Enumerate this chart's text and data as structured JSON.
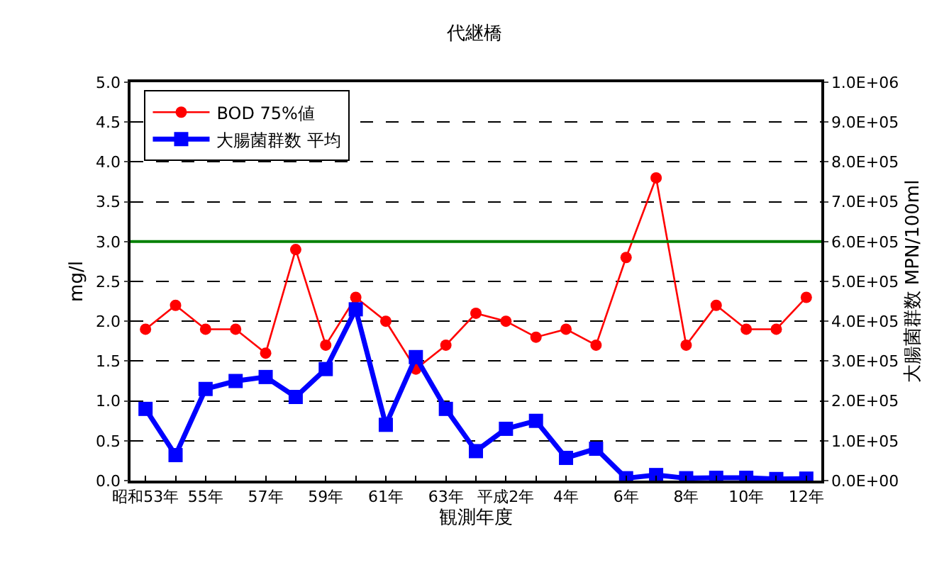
{
  "chart_data": {
    "type": "line",
    "title": "代継橋",
    "xlabel": "観測年度",
    "ylabel": "mg/l",
    "y2label": "大腸菌群数 MPN/100ml",
    "categories": [
      "昭和53年",
      null,
      "55年",
      null,
      "57年",
      null,
      "59年",
      null,
      "61年",
      null,
      "63年",
      null,
      "平成2年",
      null,
      "4年",
      null,
      "6年",
      null,
      "8年",
      null,
      "10年",
      null,
      "12年"
    ],
    "series": [
      {
        "name": "BOD 75%値",
        "color": "#ff0000",
        "marker": "circle",
        "values": [
          1.9,
          2.2,
          1.9,
          1.9,
          1.6,
          2.9,
          1.7,
          2.3,
          2.0,
          1.4,
          1.7,
          2.1,
          2.0,
          1.8,
          1.9,
          1.7,
          2.8,
          3.8,
          1.7,
          2.2,
          1.9,
          1.9,
          2.3
        ]
      },
      {
        "name": "大腸菌群数 平均",
        "color": "#0000ff",
        "marker": "square",
        "axis": "y2",
        "values": [
          180000,
          64000,
          230000,
          250000,
          260000,
          210000,
          280000,
          430000,
          140000,
          310000,
          180000,
          74000,
          130000,
          150000,
          57000,
          80000,
          6000,
          14000,
          6000,
          7000,
          7000,
          4000,
          5000
        ]
      }
    ],
    "ylim": [
      0,
      5
    ],
    "yticks": [
      {
        "value": 0,
        "label": "0.0"
      },
      {
        "value": 0.5,
        "label": "0.5"
      },
      {
        "value": 1,
        "label": "1.0"
      },
      {
        "value": 1.5,
        "label": "1.5"
      },
      {
        "value": 2,
        "label": "2.0"
      },
      {
        "value": 2.5,
        "label": "2.5"
      },
      {
        "value": 3,
        "label": "3.0"
      },
      {
        "value": 3.5,
        "label": "3.5"
      },
      {
        "value": 4,
        "label": "4.0"
      },
      {
        "value": 4.5,
        "label": "4.5"
      },
      {
        "value": 5,
        "label": "5.0"
      }
    ],
    "y2lim": [
      0,
      1000000
    ],
    "y2ticks": [
      {
        "value": 0,
        "label": "0.0E+00"
      },
      {
        "value": 100000,
        "label": "1.0E+05"
      },
      {
        "value": 200000,
        "label": "2.0E+05"
      },
      {
        "value": 300000,
        "label": "3.0E+05"
      },
      {
        "value": 400000,
        "label": "4.0E+05"
      },
      {
        "value": 500000,
        "label": "5.0E+05"
      },
      {
        "value": 600000,
        "label": "6.0E+05"
      },
      {
        "value": 700000,
        "label": "7.0E+05"
      },
      {
        "value": 800000,
        "label": "8.0E+05"
      },
      {
        "value": 900000,
        "label": "9.0E+05"
      },
      {
        "value": 1000000,
        "label": "1.0E+06"
      }
    ],
    "ref_lines": [
      {
        "axis": "y",
        "value": 3,
        "color": "#008000"
      }
    ],
    "grid": "y",
    "legend": "top left"
  }
}
